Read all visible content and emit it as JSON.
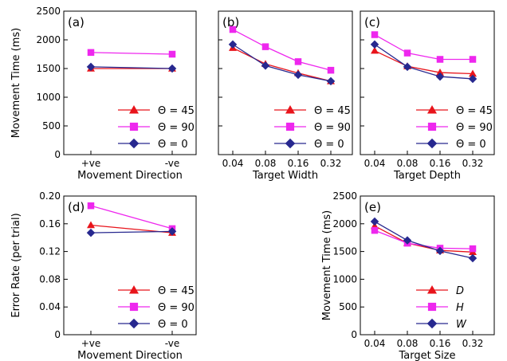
{
  "series_colors": {
    "theta45": "#e8141b",
    "theta90": "#ee27ee",
    "theta0": "#27288f",
    "D": "#e8141b",
    "H": "#ee27ee",
    "W": "#27288f"
  },
  "chart_data": [
    {
      "type": "line",
      "panel_label": "(a)",
      "xlabel": "Movement Direction",
      "ylabel": "Movement Time (ms)",
      "categories": [
        "+ve",
        "-ve"
      ],
      "ylim": [
        0,
        2500
      ],
      "yticks": [
        "0",
        "500",
        "1000",
        "1500",
        "2000",
        "2500"
      ],
      "legend_position": "bottom-right",
      "series": [
        {
          "name": "Θ = 45",
          "key": "theta45",
          "marker": "triangle",
          "values": [
            1500,
            1500
          ]
        },
        {
          "name": "Θ = 90",
          "key": "theta90",
          "marker": "square",
          "values": [
            1780,
            1750
          ]
        },
        {
          "name": "Θ = 0",
          "key": "theta0",
          "marker": "diamond",
          "values": [
            1530,
            1500
          ]
        }
      ]
    },
    {
      "type": "line",
      "panel_label": "(b)",
      "xlabel": "Target Width",
      "ylabel": "",
      "categories": [
        "0.04",
        "0.08",
        "0.16",
        "0.32"
      ],
      "ylim": [
        0,
        2500
      ],
      "legend_position": "bottom-right",
      "series": [
        {
          "name": "Θ = 45",
          "key": "theta45",
          "marker": "triangle",
          "values": [
            1860,
            1580,
            1420,
            1280
          ]
        },
        {
          "name": "Θ = 90",
          "key": "theta90",
          "marker": "square",
          "values": [
            2180,
            1880,
            1620,
            1470
          ]
        },
        {
          "name": "Θ = 0",
          "key": "theta0",
          "marker": "diamond",
          "values": [
            1920,
            1550,
            1390,
            1280
          ]
        }
      ]
    },
    {
      "type": "line",
      "panel_label": "(c)",
      "xlabel": "Target Depth",
      "ylabel": "",
      "categories": [
        "0.04",
        "0.08",
        "0.16",
        "0.32"
      ],
      "ylim": [
        0,
        2500
      ],
      "legend_position": "bottom-right",
      "series": [
        {
          "name": "Θ = 45",
          "key": "theta45",
          "marker": "triangle",
          "values": [
            1810,
            1540,
            1430,
            1410
          ]
        },
        {
          "name": "Θ = 90",
          "key": "theta90",
          "marker": "square",
          "values": [
            2090,
            1770,
            1660,
            1660
          ]
        },
        {
          "name": "Θ = 0",
          "key": "theta0",
          "marker": "diamond",
          "values": [
            1920,
            1530,
            1360,
            1320
          ]
        }
      ]
    },
    {
      "type": "line",
      "panel_label": "(d)",
      "xlabel": "Movement Direction",
      "ylabel": "Error Rate (per trial)",
      "categories": [
        "+ve",
        "-ve"
      ],
      "ylim": [
        0,
        0.2
      ],
      "yticks": [
        "0",
        "0.04",
        "0.08",
        "0.12",
        "0.16",
        "0.20"
      ],
      "legend_position": "bottom-right",
      "series": [
        {
          "name": "Θ = 45",
          "key": "theta45",
          "marker": "triangle",
          "values": [
            0.158,
            0.147
          ]
        },
        {
          "name": "Θ = 90",
          "key": "theta90",
          "marker": "square",
          "values": [
            0.186,
            0.153
          ]
        },
        {
          "name": "Θ = 0",
          "key": "theta0",
          "marker": "diamond",
          "values": [
            0.147,
            0.149
          ]
        }
      ]
    },
    {
      "type": "line",
      "panel_label": "(e)",
      "xlabel": "Target Size",
      "ylabel": "Movement Time (ms)",
      "categories": [
        "0.04",
        "0.08",
        "0.16",
        "0.32"
      ],
      "ylim": [
        0,
        2500
      ],
      "yticks": [
        "0",
        "500",
        "1000",
        "1500",
        "2000",
        "2500"
      ],
      "legend_position": "bottom-right",
      "series": [
        {
          "name": "D",
          "key": "D",
          "marker": "triangle",
          "values": [
            1960,
            1650,
            1520,
            1490
          ]
        },
        {
          "name": "H",
          "key": "H",
          "marker": "square",
          "values": [
            1880,
            1650,
            1560,
            1550
          ]
        },
        {
          "name": "W",
          "key": "W",
          "marker": "diamond",
          "values": [
            2040,
            1700,
            1510,
            1380
          ]
        }
      ]
    }
  ]
}
